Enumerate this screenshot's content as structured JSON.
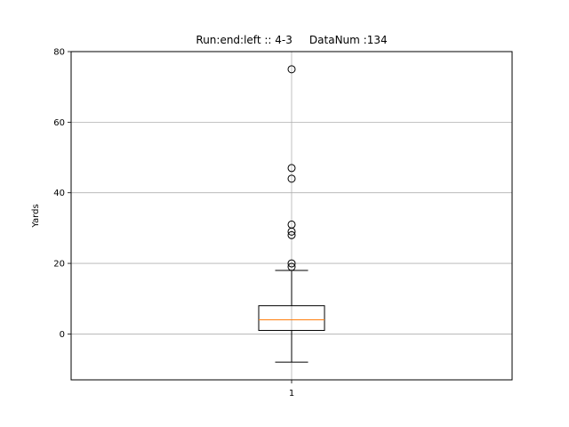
{
  "chart_data": {
    "type": "box",
    "title": "Run:end:left :: 4-3     DataNum :134",
    "xlabel": "",
    "ylabel": "Yards",
    "categories": [
      "1"
    ],
    "ylim": [
      -13,
      80
    ],
    "yticks": [
      0,
      20,
      40,
      60,
      80
    ],
    "grid": true,
    "series": [
      {
        "whisker_low": -8,
        "q1": 1,
        "median": 4,
        "q3": 8,
        "whisker_high": 18,
        "outliers": [
          19,
          20,
          28,
          29,
          31,
          44,
          47,
          75
        ]
      }
    ],
    "colors": {
      "box": "#000000",
      "median": "#ff7f0e",
      "grid": "#b0b0b0"
    }
  }
}
